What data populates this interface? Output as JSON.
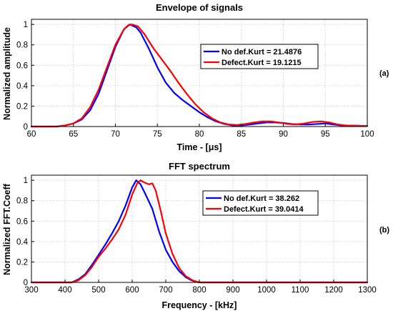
{
  "chart_data": [
    {
      "type": "line",
      "panel_label": "(a)",
      "title": "Envelope of signals",
      "xlabel": "Time - [μs]",
      "ylabel": "Normalized amplitude",
      "xlim": [
        60,
        100
      ],
      "ylim": [
        0,
        1.05
      ],
      "xticks": [
        60,
        65,
        70,
        75,
        80,
        85,
        90,
        95,
        100
      ],
      "yticks": [
        0,
        0.2,
        0.4,
        0.6,
        0.8,
        1
      ],
      "xtick_labels": [
        "60",
        "65",
        "70",
        "75",
        "80",
        "85",
        "90",
        "95",
        "100"
      ],
      "ytick_labels": [
        "0",
        "0.2",
        "0.4",
        "0.6",
        "0.8",
        "1"
      ],
      "grid": true,
      "legend_position": "top-right",
      "series": [
        {
          "name": "No def.Kurt = 21.4876",
          "color": "#0000ff",
          "points": [
            [
              60,
              0
            ],
            [
              63,
              0
            ],
            [
              64,
              0.01
            ],
            [
              65,
              0.03
            ],
            [
              66,
              0.07
            ],
            [
              67,
              0.16
            ],
            [
              68,
              0.32
            ],
            [
              69,
              0.55
            ],
            [
              70,
              0.78
            ],
            [
              71,
              0.95
            ],
            [
              71.7,
              1.0
            ],
            [
              72.5,
              0.97
            ],
            [
              73,
              0.92
            ],
            [
              74,
              0.76
            ],
            [
              75,
              0.58
            ],
            [
              76,
              0.43
            ],
            [
              77,
              0.33
            ],
            [
              78,
              0.26
            ],
            [
              79,
              0.2
            ],
            [
              80,
              0.14
            ],
            [
              81,
              0.09
            ],
            [
              82,
              0.05
            ],
            [
              83,
              0.025
            ],
            [
              84,
              0.01
            ],
            [
              85,
              0.01
            ],
            [
              86,
              0.02
            ],
            [
              87,
              0.03
            ],
            [
              88,
              0.04
            ],
            [
              89,
              0.04
            ],
            [
              90,
              0.035
            ],
            [
              91,
              0.025
            ],
            [
              92,
              0.02
            ],
            [
              93,
              0.02
            ],
            [
              94,
              0.025
            ],
            [
              95,
              0.03
            ],
            [
              96,
              0.02
            ],
            [
              97,
              0.01
            ],
            [
              98,
              0.01
            ],
            [
              100,
              0.005
            ]
          ]
        },
        {
          "name": "Defect.Kurt = 19.1215",
          "color": "#ff0000",
          "points": [
            [
              60,
              0
            ],
            [
              63,
              0
            ],
            [
              64,
              0.01
            ],
            [
              65,
              0.03
            ],
            [
              66,
              0.08
            ],
            [
              67,
              0.19
            ],
            [
              68,
              0.36
            ],
            [
              69,
              0.58
            ],
            [
              70,
              0.8
            ],
            [
              71,
              0.95
            ],
            [
              71.5,
              0.99
            ],
            [
              72,
              1.0
            ],
            [
              72.7,
              0.98
            ],
            [
              73.5,
              0.9
            ],
            [
              74.5,
              0.77
            ],
            [
              75.5,
              0.66
            ],
            [
              76.5,
              0.55
            ],
            [
              77.5,
              0.43
            ],
            [
              78.5,
              0.32
            ],
            [
              79.5,
              0.22
            ],
            [
              80.5,
              0.14
            ],
            [
              81.5,
              0.08
            ],
            [
              82.5,
              0.04
            ],
            [
              83.5,
              0.02
            ],
            [
              84.5,
              0.015
            ],
            [
              85.5,
              0.025
            ],
            [
              86.5,
              0.04
            ],
            [
              87.5,
              0.05
            ],
            [
              88.5,
              0.05
            ],
            [
              89.5,
              0.04
            ],
            [
              90.5,
              0.025
            ],
            [
              91.5,
              0.02
            ],
            [
              92.5,
              0.03
            ],
            [
              93.5,
              0.045
            ],
            [
              94.5,
              0.05
            ],
            [
              95.5,
              0.04
            ],
            [
              96.5,
              0.02
            ],
            [
              97.5,
              0.01
            ],
            [
              100,
              0.005
            ]
          ]
        }
      ]
    },
    {
      "type": "line",
      "panel_label": "(b)",
      "title": "FFT spectrum",
      "xlabel": "Frequency - [kHz]",
      "ylabel": "Normalized FFT.Coeff",
      "xlim": [
        300,
        1300
      ],
      "ylim": [
        0,
        1.05
      ],
      "xticks": [
        300,
        400,
        500,
        600,
        700,
        800,
        900,
        1000,
        1100,
        1200,
        1300
      ],
      "yticks": [
        0,
        0.2,
        0.4,
        0.6,
        0.8,
        1
      ],
      "xtick_labels": [
        "300",
        "400",
        "500",
        "600",
        "700",
        "800",
        "900",
        "1000",
        "1100",
        "1200",
        "1300"
      ],
      "ytick_labels": [
        "0",
        "0.2",
        "0.4",
        "0.6",
        "0.8",
        "1"
      ],
      "grid": true,
      "legend_position": "top-right",
      "series": [
        {
          "name": "No def.Kurt = 38.262",
          "color": "#0000ff",
          "points": [
            [
              300,
              0
            ],
            [
              420,
              0
            ],
            [
              440,
              0.03
            ],
            [
              460,
              0.08
            ],
            [
              480,
              0.17
            ],
            [
              500,
              0.27
            ],
            [
              520,
              0.37
            ],
            [
              540,
              0.48
            ],
            [
              560,
              0.6
            ],
            [
              580,
              0.75
            ],
            [
              600,
              0.93
            ],
            [
              612,
              1.0
            ],
            [
              625,
              0.96
            ],
            [
              640,
              0.86
            ],
            [
              660,
              0.72
            ],
            [
              680,
              0.5
            ],
            [
              700,
              0.32
            ],
            [
              720,
              0.2
            ],
            [
              740,
              0.11
            ],
            [
              760,
              0.05
            ],
            [
              780,
              0.015
            ],
            [
              800,
              0
            ],
            [
              1300,
              0
            ]
          ]
        },
        {
          "name": "Defect.Kurt = 39.0414",
          "color": "#ff0000",
          "points": [
            [
              300,
              0
            ],
            [
              420,
              0
            ],
            [
              440,
              0.02
            ],
            [
              460,
              0.07
            ],
            [
              480,
              0.15
            ],
            [
              500,
              0.25
            ],
            [
              520,
              0.33
            ],
            [
              540,
              0.42
            ],
            [
              560,
              0.52
            ],
            [
              580,
              0.66
            ],
            [
              600,
              0.86
            ],
            [
              615,
              0.97
            ],
            [
              625,
              1.0
            ],
            [
              635,
              0.98
            ],
            [
              650,
              0.96
            ],
            [
              660,
              0.97
            ],
            [
              670,
              0.9
            ],
            [
              685,
              0.7
            ],
            [
              700,
              0.48
            ],
            [
              720,
              0.28
            ],
            [
              740,
              0.14
            ],
            [
              760,
              0.06
            ],
            [
              780,
              0.02
            ],
            [
              800,
              0
            ],
            [
              1300,
              0
            ]
          ]
        }
      ]
    }
  ]
}
